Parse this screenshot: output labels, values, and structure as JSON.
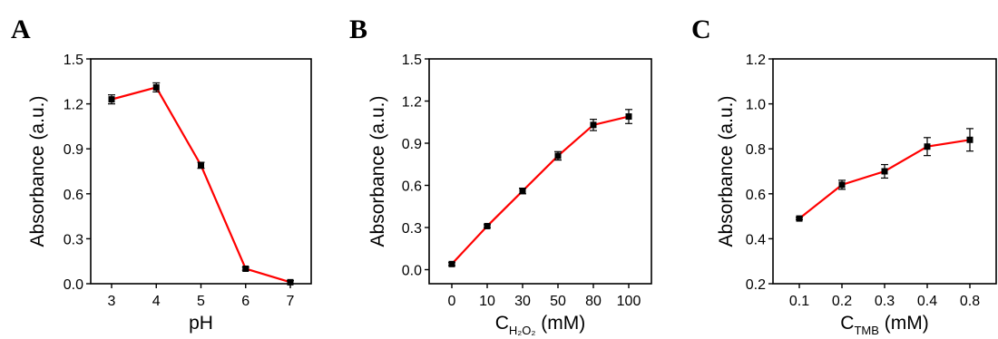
{
  "chart_data": [
    {
      "type": "line",
      "panel": "A",
      "x_categories": [
        "3",
        "4",
        "5",
        "6",
        "7"
      ],
      "yticks": [
        "0.0",
        "0.3",
        "0.6",
        "0.9",
        "1.2",
        "1.5"
      ],
      "ylim": [
        0,
        1.5
      ],
      "xlabel": "pH",
      "ylabel": "Absorbance (a.u.)",
      "series": [
        {
          "values": [
            1.23,
            1.31,
            0.79,
            0.1,
            0.01
          ],
          "errors": [
            0.03,
            0.03,
            0.02,
            0.01,
            0.01
          ]
        }
      ],
      "line_color": "#ff0000",
      "marker_color": "#000000"
    },
    {
      "type": "line",
      "panel": "B",
      "x_categories": [
        "0",
        "10",
        "30",
        "50",
        "80",
        "100"
      ],
      "yticks": [
        "0.0",
        "0.3",
        "0.6",
        "0.9",
        "1.2",
        "1.5"
      ],
      "ylim": [
        -0.1,
        1.5
      ],
      "xlabel_main": "C",
      "xlabel_sub": "H₂O₂",
      "xlabel_unit": " (mM)",
      "ylabel": "Absorbance (a.u.)",
      "series": [
        {
          "values": [
            0.04,
            0.31,
            0.56,
            0.81,
            1.03,
            1.09
          ],
          "errors": [
            0.01,
            0.01,
            0.02,
            0.03,
            0.04,
            0.05
          ]
        }
      ],
      "line_color": "#ff0000",
      "marker_color": "#000000"
    },
    {
      "type": "line",
      "panel": "C",
      "x_categories": [
        "0.1",
        "0.2",
        "0.3",
        "0.4",
        "0.8"
      ],
      "yticks": [
        "0.2",
        "0.4",
        "0.6",
        "0.8",
        "1.0",
        "1.2"
      ],
      "ylim": [
        0.2,
        1.2
      ],
      "xlabel_main": "C",
      "xlabel_sub": "TMB",
      "xlabel_unit": " (mM)",
      "ylabel": "Absorbance (a.u.)",
      "series": [
        {
          "values": [
            0.49,
            0.64,
            0.7,
            0.81,
            0.84
          ],
          "errors": [
            0.005,
            0.02,
            0.03,
            0.04,
            0.05
          ]
        }
      ],
      "line_color": "#ff0000",
      "marker_color": "#000000"
    }
  ]
}
